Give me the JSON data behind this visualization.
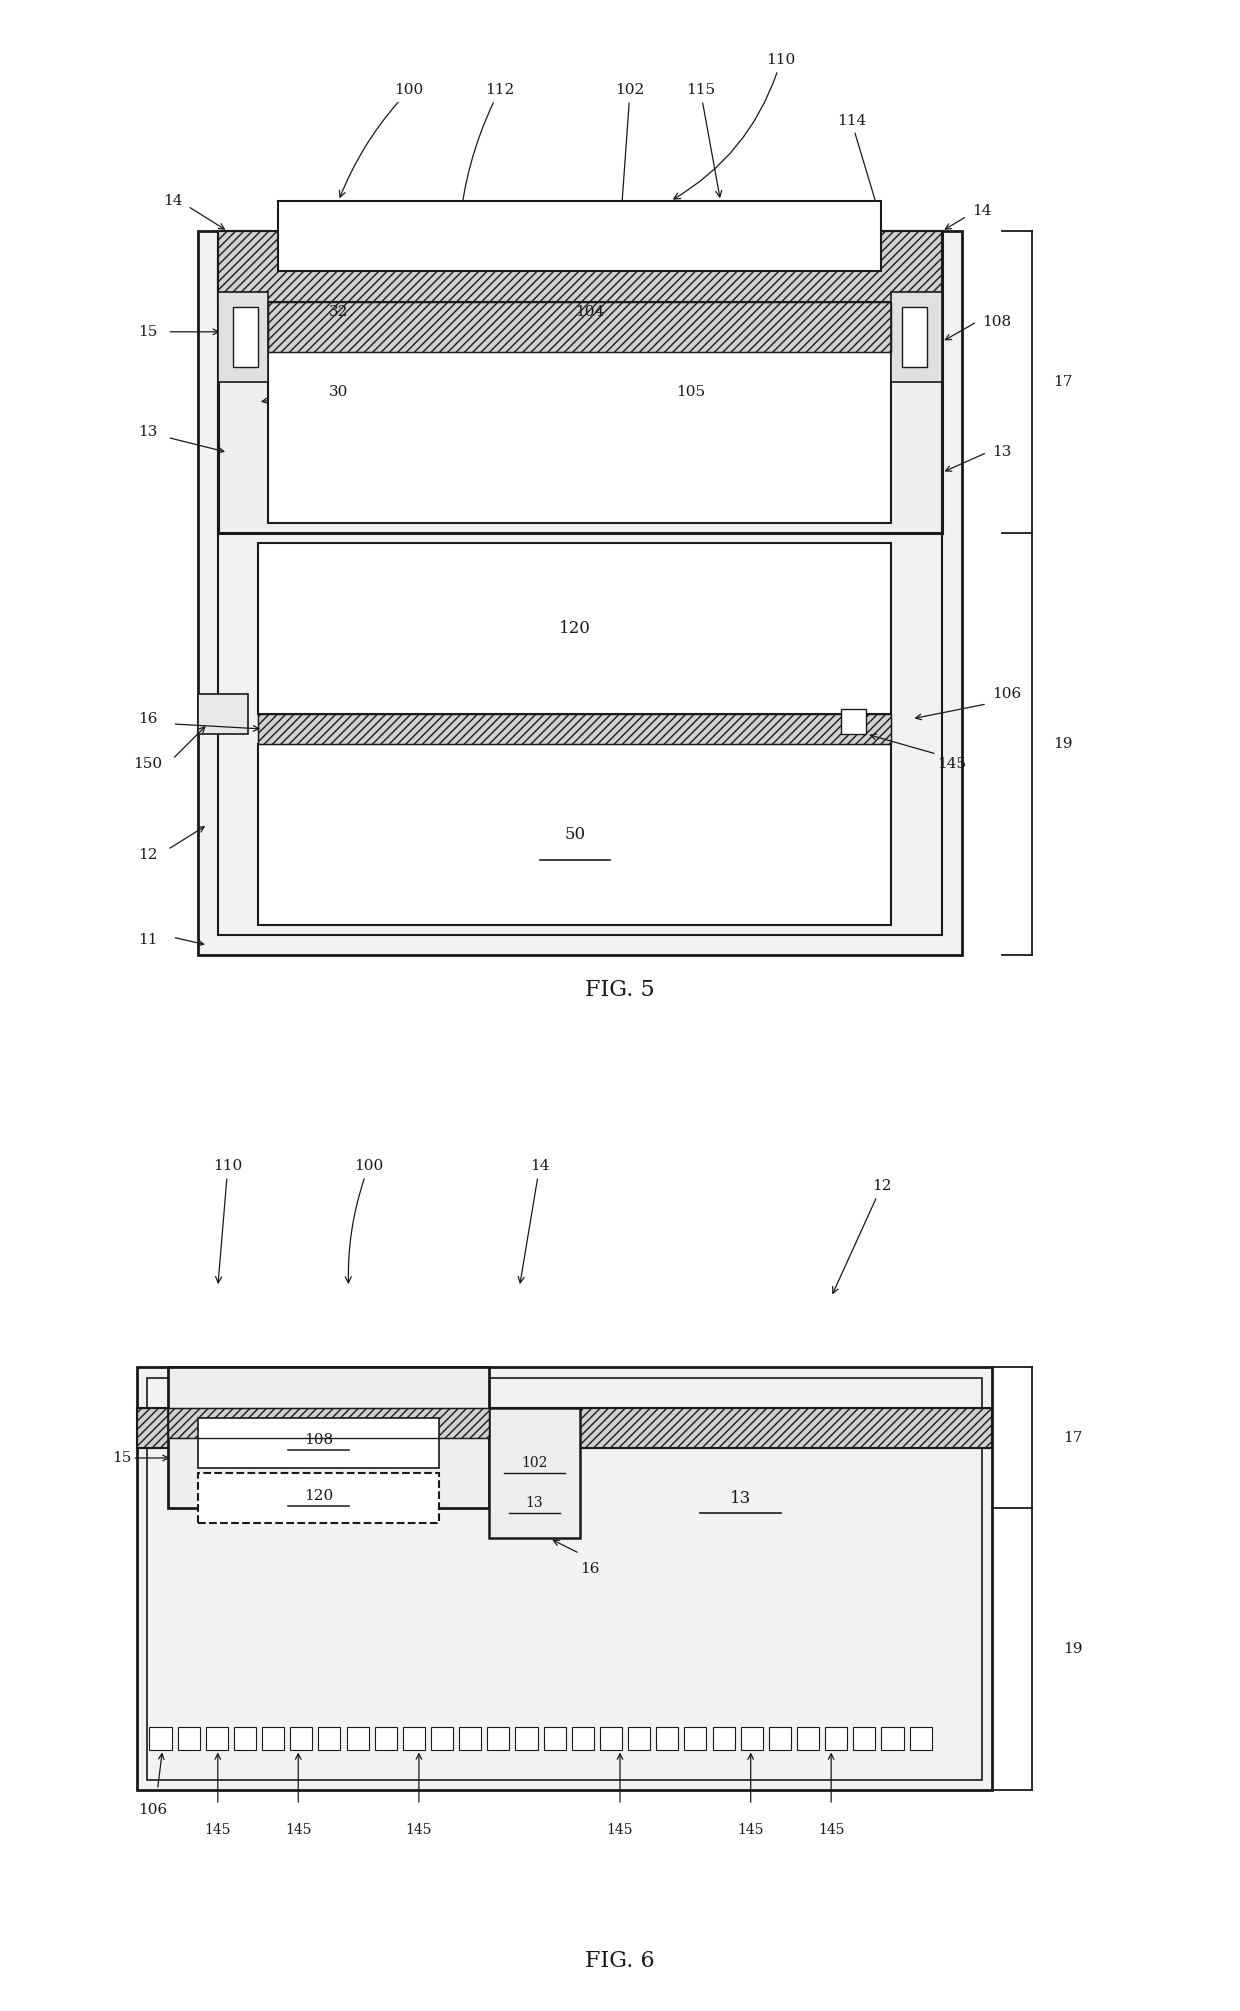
{
  "bg_color": "#ffffff",
  "lc": "#1a1a1a",
  "fs": 11,
  "fs_title": 16,
  "fig5_title": "FIG. 5",
  "fig6_title": "FIG. 6"
}
